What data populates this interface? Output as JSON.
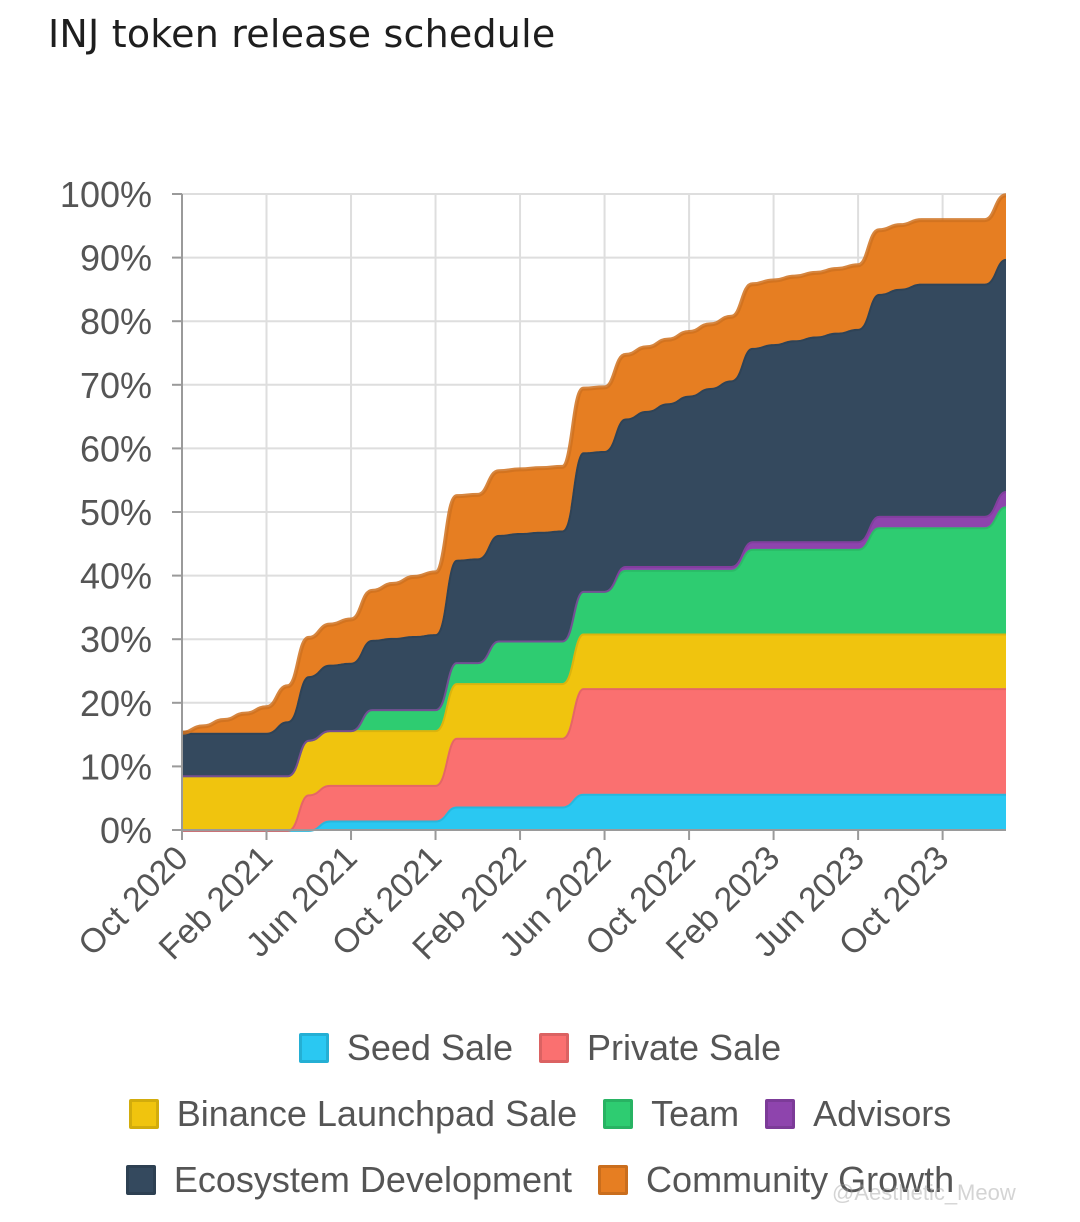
{
  "title": "INJ token release schedule",
  "watermark": "@Aesthetic_Meow",
  "chart_data": {
    "type": "area",
    "stacked": true,
    "title": "INJ token release schedule",
    "xlabel": "",
    "ylabel": "",
    "ylim": [
      0,
      100
    ],
    "y_ticks": [
      "0%",
      "10%",
      "20%",
      "30%",
      "40%",
      "50%",
      "60%",
      "70%",
      "80%",
      "90%",
      "100%"
    ],
    "x": [
      "Oct 2020",
      "Nov 2020",
      "Dec 2020",
      "Jan 2021",
      "Feb 2021",
      "Mar 2021",
      "Apr 2021",
      "May 2021",
      "Jun 2021",
      "Jul 2021",
      "Aug 2021",
      "Sep 2021",
      "Oct 2021",
      "Nov 2021",
      "Dec 2021",
      "Jan 2022",
      "Feb 2022",
      "Mar 2022",
      "Apr 2022",
      "May 2022",
      "Jun 2022",
      "Jul 2022",
      "Aug 2022",
      "Sep 2022",
      "Oct 2022",
      "Nov 2022",
      "Dec 2022",
      "Jan 2023",
      "Feb 2023",
      "Mar 2023",
      "Apr 2023",
      "May 2023",
      "Jun 2023",
      "Jul 2023",
      "Aug 2023",
      "Sep 2023",
      "Oct 2023",
      "Nov 2023",
      "Dec 2023",
      "Jan 2024"
    ],
    "x_tick_labels": [
      "Oct 2020",
      "Feb 2021",
      "Jun 2021",
      "Oct 2021",
      "Feb 2022",
      "Jun 2022",
      "Oct 2022",
      "Feb 2023",
      "Jun 2023",
      "Oct 2023"
    ],
    "grid": true,
    "legend_position": "bottom",
    "series": [
      {
        "name": "Seed Sale",
        "color": "#2ac8f2",
        "values": [
          0,
          0,
          0,
          0,
          0,
          0,
          0,
          1.5,
          1.5,
          1.5,
          1.5,
          1.5,
          1.5,
          3.7,
          3.7,
          3.7,
          3.7,
          3.7,
          3.7,
          5.7,
          5.7,
          5.7,
          5.7,
          5.7,
          5.7,
          5.7,
          5.7,
          5.7,
          5.7,
          5.7,
          5.7,
          5.7,
          5.7,
          5.7,
          5.7,
          5.7,
          5.7,
          5.7,
          5.7,
          5.7
        ]
      },
      {
        "name": "Private Sale",
        "color": "#fa7070",
        "values": [
          0,
          0,
          0,
          0,
          0,
          0,
          5.6,
          5.6,
          5.6,
          5.6,
          5.6,
          5.6,
          5.6,
          10.8,
          10.8,
          10.8,
          10.8,
          10.8,
          10.8,
          16.6,
          16.6,
          16.6,
          16.6,
          16.6,
          16.6,
          16.6,
          16.6,
          16.6,
          16.6,
          16.6,
          16.6,
          16.6,
          16.6,
          16.6,
          16.6,
          16.6,
          16.6,
          16.6,
          16.6,
          16.6
        ]
      },
      {
        "name": "Binance Launchpad Sale",
        "color": "#f0c40e",
        "values": [
          8.6,
          8.6,
          8.6,
          8.6,
          8.6,
          8.6,
          8.6,
          8.6,
          8.6,
          8.6,
          8.6,
          8.6,
          8.6,
          8.6,
          8.6,
          8.6,
          8.6,
          8.6,
          8.6,
          8.6,
          8.6,
          8.6,
          8.6,
          8.6,
          8.6,
          8.6,
          8.6,
          8.6,
          8.6,
          8.6,
          8.6,
          8.6,
          8.6,
          8.6,
          8.6,
          8.6,
          8.6,
          8.6,
          8.6,
          8.6
        ]
      },
      {
        "name": "Team",
        "color": "#2ecc71",
        "values": [
          0,
          0,
          0,
          0,
          0,
          0,
          0,
          0,
          0,
          3.3,
          3.3,
          3.3,
          3.3,
          3.3,
          3.3,
          6.7,
          6.7,
          6.7,
          6.7,
          6.7,
          6.7,
          10,
          10,
          10,
          10,
          10,
          10,
          13.3,
          13.3,
          13.3,
          13.3,
          13.3,
          13.3,
          16.7,
          16.7,
          16.7,
          16.7,
          16.7,
          16.7,
          20
        ]
      },
      {
        "name": "Advisors",
        "color": "#8e44ad",
        "values": [
          0,
          0,
          0,
          0,
          0,
          0,
          0,
          0,
          0,
          0,
          0,
          0,
          0,
          0,
          0,
          0,
          0,
          0,
          0,
          0,
          0,
          0.6,
          0.6,
          0.6,
          0.6,
          0.6,
          0.6,
          1.2,
          1.2,
          1.2,
          1.2,
          1.2,
          1.2,
          1.8,
          1.8,
          1.8,
          1.8,
          1.8,
          1.8,
          2.4
        ]
      },
      {
        "name": "Ecosystem Development",
        "color": "#34495e",
        "values": [
          6.7,
          6.7,
          6.7,
          6.7,
          6.7,
          8.5,
          10,
          10.3,
          10.6,
          10.9,
          11.2,
          11.5,
          11.8,
          16.1,
          16.3,
          16.6,
          16.9,
          17.1,
          17.3,
          21.8,
          22,
          23.2,
          24.4,
          25.6,
          26.8,
          28,
          29.2,
          30.4,
          31,
          31.6,
          32.2,
          32.8,
          33.4,
          34.9,
          35.7,
          36.5,
          36.5,
          36.5,
          36.5,
          36.5
        ]
      },
      {
        "name": "Community Growth",
        "color": "#e67e22",
        "values": [
          0,
          1,
          2,
          3,
          4,
          5.5,
          6,
          6.3,
          6.8,
          7.7,
          8.5,
          9.3,
          9.7,
          10,
          10,
          10,
          10,
          10,
          10,
          10,
          10,
          10,
          10,
          10,
          10,
          10,
          10,
          10,
          10,
          10,
          10,
          10,
          10,
          10,
          10,
          10,
          10,
          10,
          10,
          10
        ]
      }
    ]
  }
}
